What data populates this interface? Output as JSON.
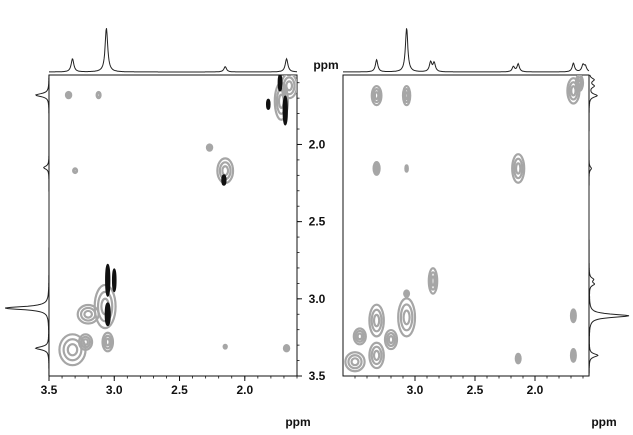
{
  "chart_data": [
    {
      "type": "contour",
      "panel": "left",
      "xlabel": "ppm",
      "ylabel": "ppm",
      "x_axis": {
        "range": [
          3.5,
          1.6
        ],
        "reversed": true,
        "ticks": [
          "3.5",
          "3.0",
          "2.5",
          "2.0"
        ]
      },
      "y_axis": {
        "range": [
          1.55,
          3.5
        ],
        "reversed": true,
        "ticks": [
          "2.0",
          "2.5",
          "3.0",
          "3.5"
        ]
      },
      "colors": {
        "positive": "#a6a6a6",
        "negative": "#111111",
        "spectrum": "#222222"
      },
      "top_projection_peaks": [
        {
          "ppm": 3.32,
          "intensity": 0.3
        },
        {
          "ppm": 3.06,
          "intensity": 1.0
        },
        {
          "ppm": 2.15,
          "intensity": 0.12
        },
        {
          "ppm": 1.68,
          "intensity": 0.3
        }
      ],
      "side_projection_peaks": [
        {
          "ppm": 1.68,
          "intensity": 0.3
        },
        {
          "ppm": 2.15,
          "intensity": 0.12
        },
        {
          "ppm": 3.06,
          "intensity": 1.0
        },
        {
          "ppm": 3.32,
          "intensity": 0.3
        }
      ],
      "positive_contours": [
        {
          "x": 3.35,
          "y": 1.68,
          "rx": 0.02,
          "ry": 0.02
        },
        {
          "x": 3.12,
          "y": 1.68,
          "rx": 0.015,
          "ry": 0.02
        },
        {
          "x": 1.66,
          "y": 1.62,
          "rx": 0.06,
          "ry": 0.08
        },
        {
          "x": 1.72,
          "y": 1.72,
          "rx": 0.05,
          "ry": 0.12
        },
        {
          "x": 2.15,
          "y": 2.17,
          "rx": 0.06,
          "ry": 0.08
        },
        {
          "x": 2.27,
          "y": 2.02,
          "rx": 0.02,
          "ry": 0.02
        },
        {
          "x": 3.3,
          "y": 2.17,
          "rx": 0.015,
          "ry": 0.015
        },
        {
          "x": 3.07,
          "y": 3.05,
          "rx": 0.08,
          "ry": 0.14
        },
        {
          "x": 3.2,
          "y": 3.1,
          "rx": 0.08,
          "ry": 0.06
        },
        {
          "x": 3.32,
          "y": 3.33,
          "rx": 0.1,
          "ry": 0.1
        },
        {
          "x": 3.22,
          "y": 3.28,
          "rx": 0.05,
          "ry": 0.05
        },
        {
          "x": 3.05,
          "y": 3.28,
          "rx": 0.04,
          "ry": 0.06
        },
        {
          "x": 2.15,
          "y": 3.31,
          "rx": 0.012,
          "ry": 0.012
        },
        {
          "x": 1.68,
          "y": 3.32,
          "rx": 0.02,
          "ry": 0.02
        }
      ],
      "negative_contours": [
        {
          "x": 1.73,
          "y": 1.6,
          "rx": 0.01,
          "ry": 0.05
        },
        {
          "x": 1.69,
          "y": 1.78,
          "rx": 0.012,
          "ry": 0.09
        },
        {
          "x": 1.82,
          "y": 1.74,
          "rx": 0.006,
          "ry": 0.03
        },
        {
          "x": 2.16,
          "y": 2.23,
          "rx": 0.012,
          "ry": 0.03
        },
        {
          "x": 3.05,
          "y": 2.88,
          "rx": 0.012,
          "ry": 0.1
        },
        {
          "x": 3.0,
          "y": 2.88,
          "rx": 0.008,
          "ry": 0.07
        },
        {
          "x": 3.05,
          "y": 3.1,
          "rx": 0.015,
          "ry": 0.07
        }
      ]
    },
    {
      "type": "contour",
      "panel": "right",
      "xlabel": "ppm",
      "ylabel": "ppm",
      "x_axis": {
        "range": [
          3.6,
          1.55
        ],
        "reversed": true,
        "ticks": [
          "3.0",
          "2.5",
          "2.0"
        ]
      },
      "y_axis": {
        "range": [
          1.55,
          3.45
        ],
        "reversed": true,
        "ticks": []
      },
      "colors": {
        "positive": "#a6a6a6",
        "spectrum": "#222222"
      },
      "top_projection_peaks": [
        {
          "ppm": 3.32,
          "intensity": 0.28
        },
        {
          "ppm": 3.07,
          "intensity": 1.0
        },
        {
          "ppm": 2.87,
          "intensity": 0.22
        },
        {
          "ppm": 2.84,
          "intensity": 0.2
        },
        {
          "ppm": 2.18,
          "intensity": 0.12
        },
        {
          "ppm": 2.14,
          "intensity": 0.18
        },
        {
          "ppm": 1.68,
          "intensity": 0.2
        },
        {
          "ppm": 1.6,
          "intensity": 0.15
        },
        {
          "ppm": 1.58,
          "intensity": 0.12
        }
      ],
      "side_projection_peaks": [
        {
          "ppm": 1.58,
          "intensity": 0.12
        },
        {
          "ppm": 1.62,
          "intensity": 0.12
        },
        {
          "ppm": 1.68,
          "intensity": 0.2
        },
        {
          "ppm": 2.14,
          "intensity": 0.06
        },
        {
          "ppm": 2.84,
          "intensity": 0.1
        },
        {
          "ppm": 2.87,
          "intensity": 0.12
        },
        {
          "ppm": 3.07,
          "intensity": 1.0
        },
        {
          "ppm": 3.32,
          "intensity": 0.22
        }
      ],
      "positive_contours": [
        {
          "x": 3.32,
          "y": 1.68,
          "rx": 0.04,
          "ry": 0.06
        },
        {
          "x": 3.07,
          "y": 1.68,
          "rx": 0.03,
          "ry": 0.06
        },
        {
          "x": 1.68,
          "y": 1.65,
          "rx": 0.05,
          "ry": 0.08
        },
        {
          "x": 1.63,
          "y": 1.6,
          "rx": 0.03,
          "ry": 0.05
        },
        {
          "x": 2.14,
          "y": 2.14,
          "rx": 0.05,
          "ry": 0.09
        },
        {
          "x": 3.32,
          "y": 2.14,
          "rx": 0.025,
          "ry": 0.04
        },
        {
          "x": 3.07,
          "y": 2.14,
          "rx": 0.01,
          "ry": 0.02
        },
        {
          "x": 2.85,
          "y": 2.85,
          "rx": 0.035,
          "ry": 0.08
        },
        {
          "x": 3.07,
          "y": 2.93,
          "rx": 0.02,
          "ry": 0.02
        },
        {
          "x": 3.07,
          "y": 3.08,
          "rx": 0.07,
          "ry": 0.12
        },
        {
          "x": 3.32,
          "y": 3.1,
          "rx": 0.06,
          "ry": 0.1
        },
        {
          "x": 3.46,
          "y": 3.2,
          "rx": 0.05,
          "ry": 0.05
        },
        {
          "x": 3.32,
          "y": 3.32,
          "rx": 0.06,
          "ry": 0.08
        },
        {
          "x": 3.5,
          "y": 3.36,
          "rx": 0.08,
          "ry": 0.06
        },
        {
          "x": 3.2,
          "y": 3.22,
          "rx": 0.05,
          "ry": 0.06
        },
        {
          "x": 1.68,
          "y": 3.07,
          "rx": 0.02,
          "ry": 0.04
        },
        {
          "x": 1.68,
          "y": 3.32,
          "rx": 0.02,
          "ry": 0.04
        },
        {
          "x": 2.14,
          "y": 3.34,
          "rx": 0.02,
          "ry": 0.03
        }
      ]
    }
  ]
}
